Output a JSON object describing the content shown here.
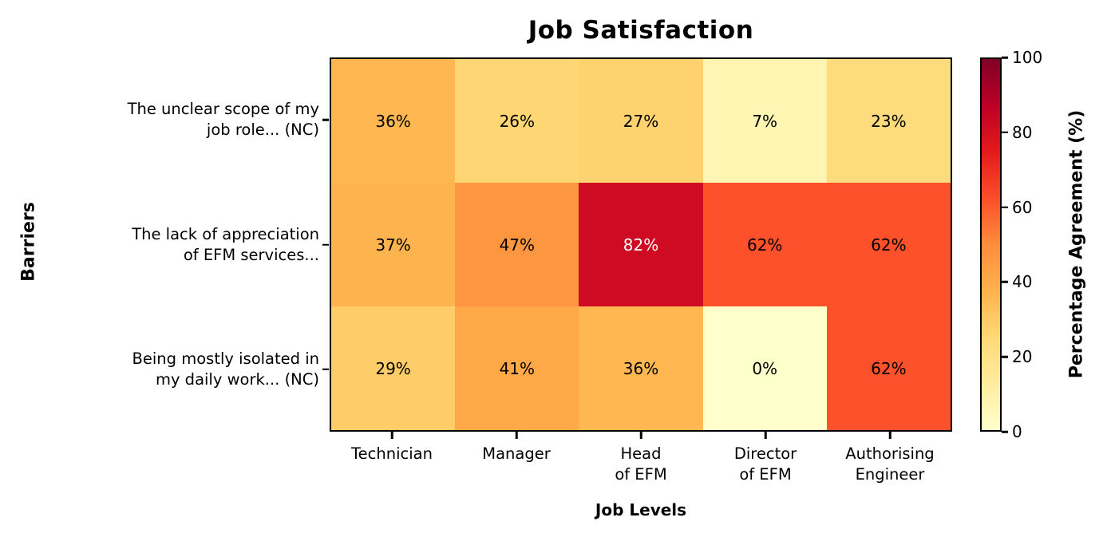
{
  "chart_data": {
    "type": "heatmap",
    "title": "Job Satisfaction",
    "xlabel": "Job Levels",
    "ylabel": "Barriers",
    "colorbar_label": "Percentage Agreement (%)",
    "colorbar_ticks": [
      0,
      20,
      40,
      60,
      80,
      100
    ],
    "vmin": 0,
    "vmax": 100,
    "grid": false,
    "legend": "colorbar-right",
    "colormap": {
      "name": "YlOrRd",
      "stops": [
        "#ffffcc",
        "#ffeda0",
        "#fed976",
        "#feb24c",
        "#fd8d3c",
        "#fc4e2a",
        "#e31a1c",
        "#bd0026",
        "#800026"
      ]
    },
    "categories": [
      "Technician",
      "Manager",
      "Head\nof EFM",
      "Director\nof EFM",
      "Authorising\nEngineer"
    ],
    "rows": [
      "The unclear scope of my\njob role... (NC)",
      "The lack of appreciation\nof EFM services...",
      "Being mostly isolated in\nmy daily work... (NC)"
    ],
    "values": [
      [
        36,
        26,
        27,
        7,
        23
      ],
      [
        37,
        47,
        82,
        62,
        62
      ],
      [
        29,
        41,
        36,
        0,
        62
      ]
    ],
    "cell_labels": [
      [
        "36%",
        "26%",
        "27%",
        "7%",
        "23%"
      ],
      [
        "37%",
        "47%",
        "82%",
        "62%",
        "62%"
      ],
      [
        "29%",
        "41%",
        "36%",
        "0%",
        "62%"
      ]
    ],
    "cell_text_colors": {
      "dark_value_text": "#ffffff",
      "light_value_text": "#000000",
      "white_text_threshold": 70
    }
  }
}
